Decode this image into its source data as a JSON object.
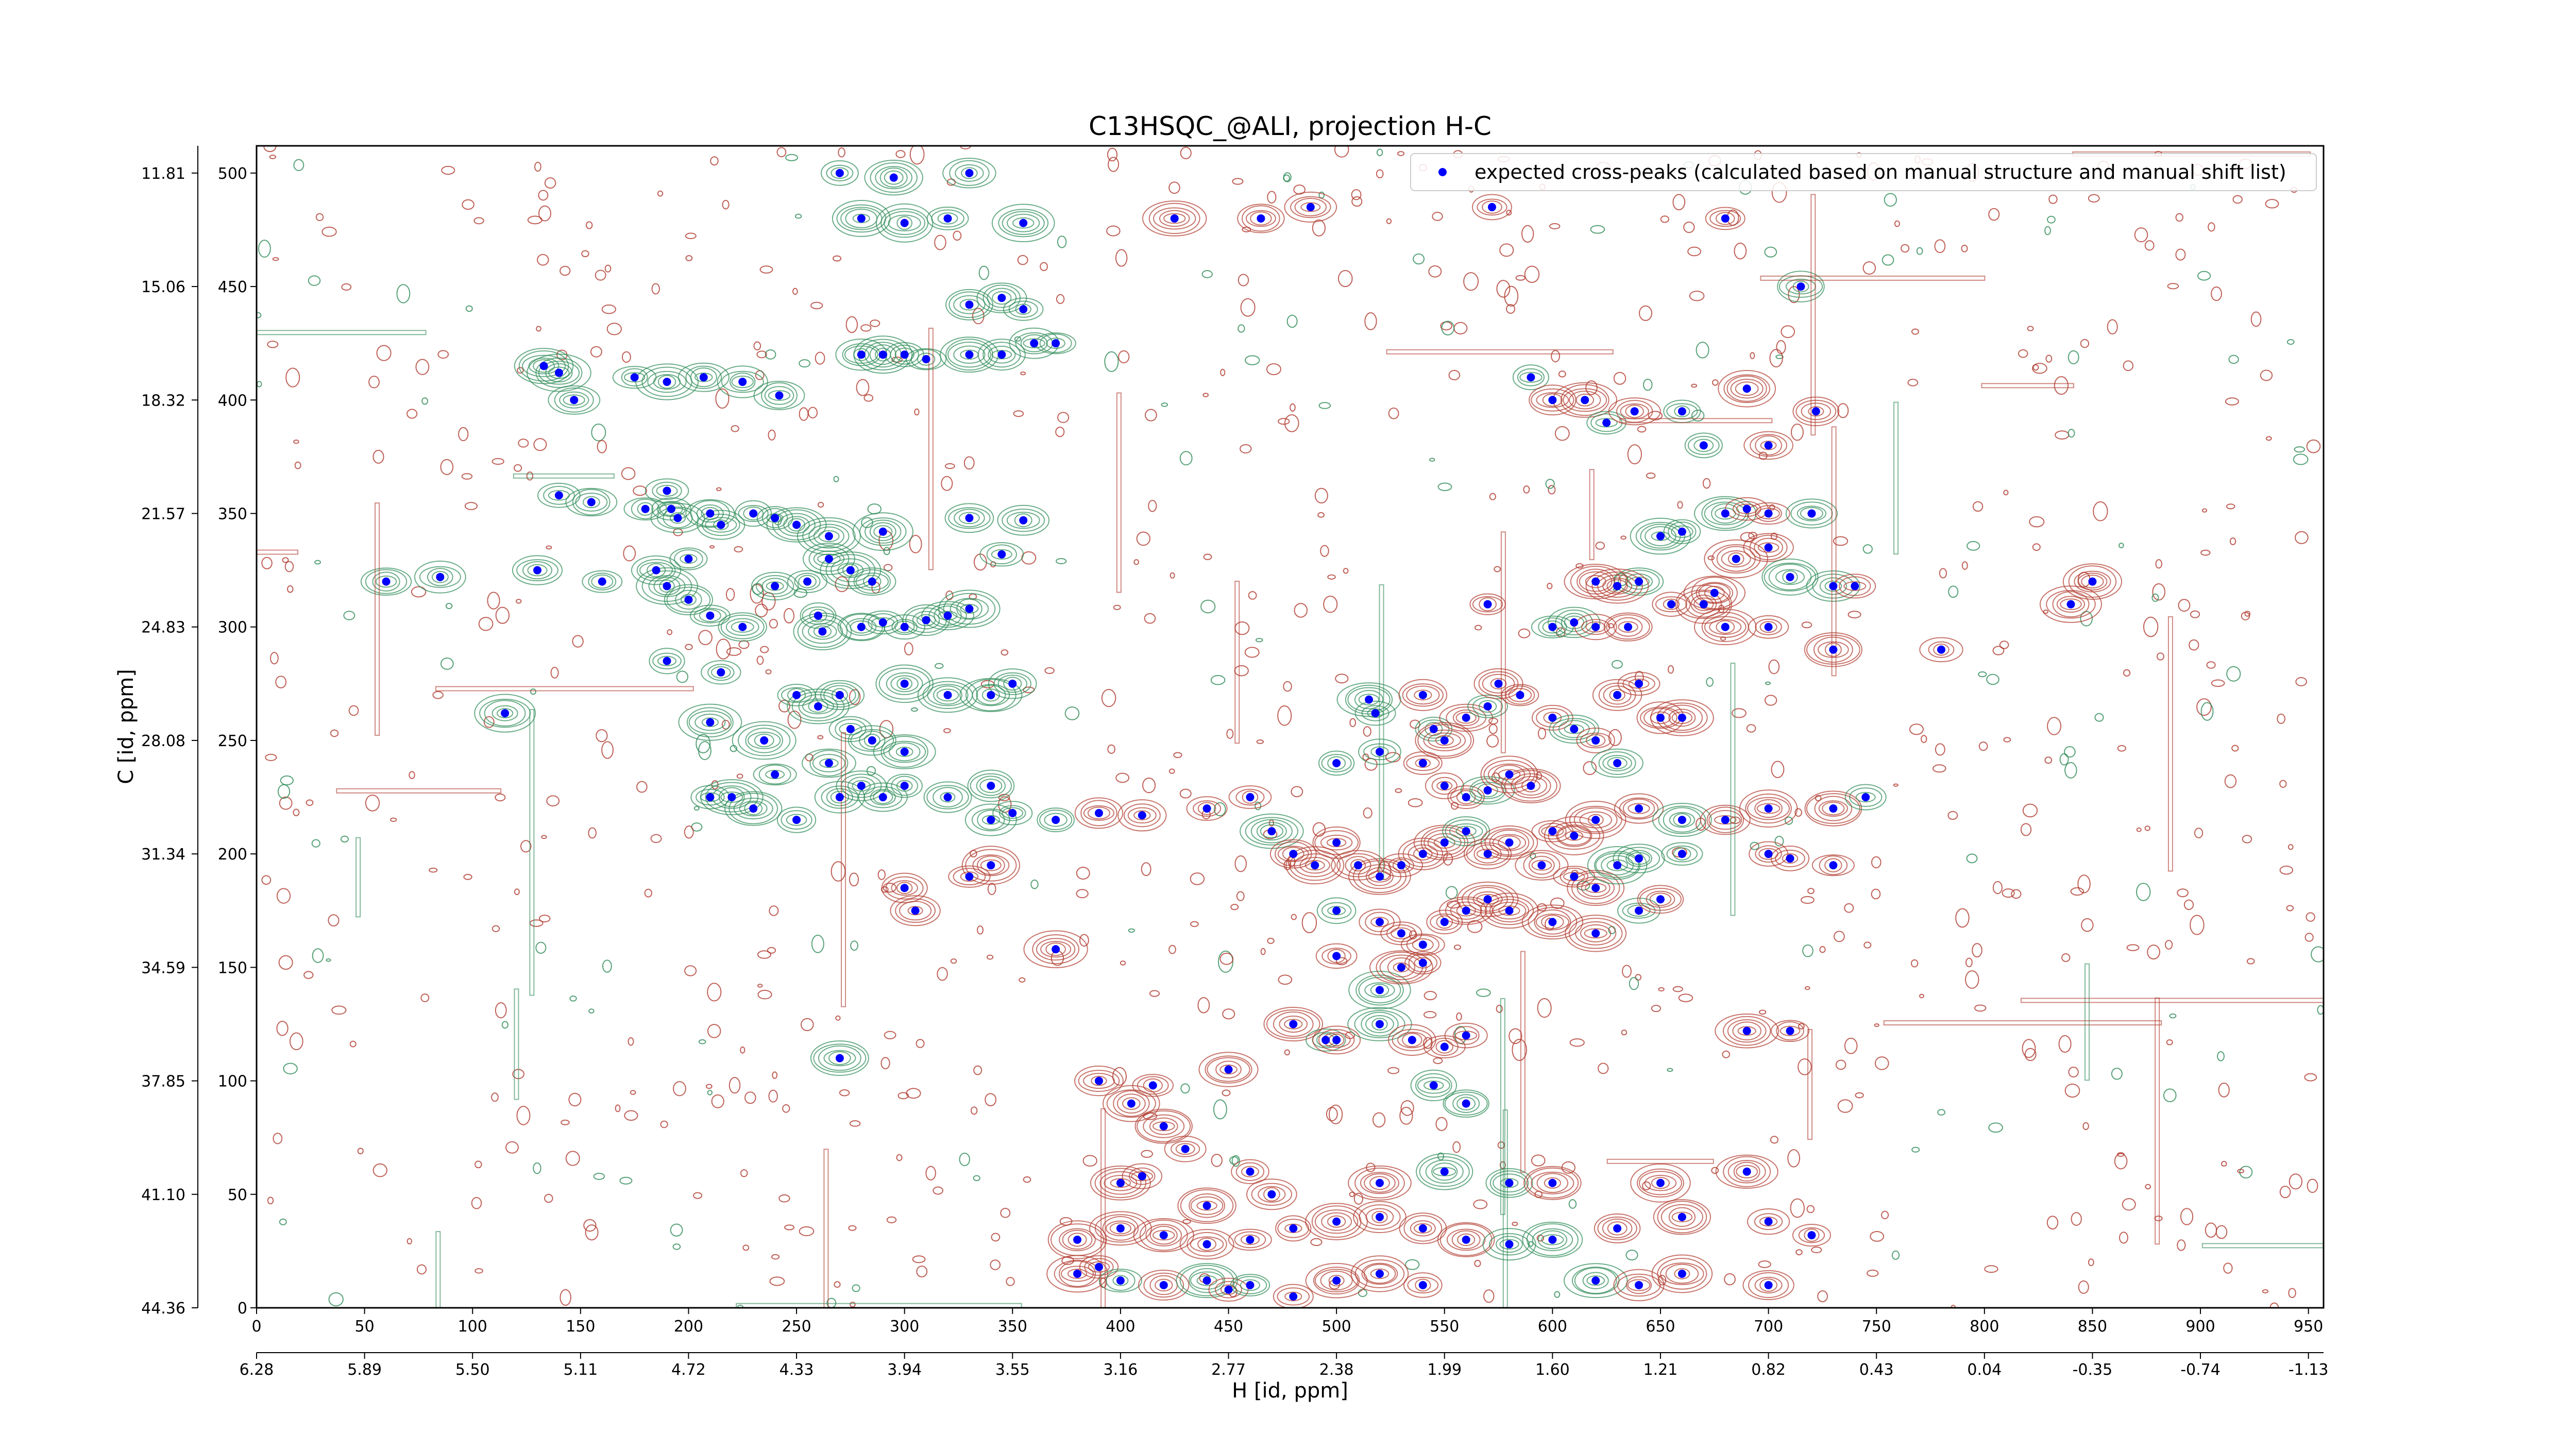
{
  "chart_data": {
    "type": "scatter",
    "title": "C13HSQC_@ALI, projection H-C",
    "xlabel": "H [id, ppm]",
    "ylabel": "C [id, ppm]",
    "xlim": [
      0,
      957
    ],
    "ylim": [
      0,
      512
    ],
    "grid": false,
    "legend": {
      "placement": "top-right",
      "entries": [
        "expected cross-peaks (calculated based on manual structure and manual shift list)"
      ]
    },
    "x_ticks": [
      0,
      50,
      100,
      150,
      200,
      250,
      300,
      350,
      400,
      450,
      500,
      550,
      600,
      650,
      700,
      750,
      800,
      850,
      900,
      950
    ],
    "x_ppm_ticks": [
      "6.28",
      "5.89",
      "5.50",
      "5.11",
      "4.72",
      "4.33",
      "3.94",
      "3.55",
      "3.16",
      "2.77",
      "2.38",
      "1.99",
      "1.60",
      "1.21",
      "0.82",
      "0.43",
      "0.04",
      "-0.35",
      "-0.74",
      "-1.13"
    ],
    "y_ticks": [
      0,
      50,
      100,
      150,
      200,
      250,
      300,
      350,
      400,
      450,
      500
    ],
    "y_ppm_ticks": [
      "44.36",
      "41.10",
      "37.85",
      "34.59",
      "31.34",
      "28.08",
      "24.83",
      "21.57",
      "18.32",
      "15.06",
      "11.81"
    ],
    "colors": {
      "positive_contour": "#2e8b57",
      "negative_contour": "#b03a2e",
      "peak_marker": "#0000ff"
    },
    "series": [
      {
        "name": "expected cross-peaks (calculated based on manual structure and manual shift list)",
        "points": [
          [
            270,
            500
          ],
          [
            295,
            498
          ],
          [
            330,
            500
          ],
          [
            280,
            480
          ],
          [
            300,
            478
          ],
          [
            320,
            480
          ],
          [
            355,
            478
          ],
          [
            425,
            480
          ],
          [
            465,
            480
          ],
          [
            488,
            485
          ],
          [
            572,
            485
          ],
          [
            680,
            480
          ],
          [
            345,
            445
          ],
          [
            330,
            442
          ],
          [
            355,
            440
          ],
          [
            715,
            450
          ],
          [
            133,
            415
          ],
          [
            140,
            412
          ],
          [
            147,
            400
          ],
          [
            175,
            410
          ],
          [
            190,
            408
          ],
          [
            207,
            410
          ],
          [
            225,
            408
          ],
          [
            242,
            402
          ],
          [
            280,
            420
          ],
          [
            290,
            420
          ],
          [
            300,
            420
          ],
          [
            310,
            418
          ],
          [
            330,
            420
          ],
          [
            345,
            420
          ],
          [
            360,
            425
          ],
          [
            370,
            425
          ],
          [
            590,
            410
          ],
          [
            600,
            400
          ],
          [
            615,
            400
          ],
          [
            625,
            390
          ],
          [
            638,
            395
          ],
          [
            660,
            395
          ],
          [
            670,
            380
          ],
          [
            690,
            405
          ],
          [
            722,
            395
          ],
          [
            700,
            380
          ],
          [
            140,
            358
          ],
          [
            155,
            355
          ],
          [
            180,
            352
          ],
          [
            190,
            360
          ],
          [
            192,
            352
          ],
          [
            195,
            348
          ],
          [
            200,
            330
          ],
          [
            210,
            350
          ],
          [
            215,
            345
          ],
          [
            230,
            350
          ],
          [
            240,
            348
          ],
          [
            250,
            345
          ],
          [
            265,
            340
          ],
          [
            290,
            342
          ],
          [
            330,
            348
          ],
          [
            355,
            347
          ],
          [
            160,
            320
          ],
          [
            185,
            325
          ],
          [
            190,
            318
          ],
          [
            200,
            312
          ],
          [
            210,
            305
          ],
          [
            225,
            300
          ],
          [
            240,
            318
          ],
          [
            255,
            320
          ],
          [
            260,
            305
          ],
          [
            262,
            298
          ],
          [
            280,
            300
          ],
          [
            290,
            302
          ],
          [
            300,
            300
          ],
          [
            310,
            303
          ],
          [
            320,
            305
          ],
          [
            330,
            308
          ],
          [
            345,
            332
          ],
          [
            265,
            330
          ],
          [
            275,
            325
          ],
          [
            285,
            320
          ],
          [
            60,
            320
          ],
          [
            85,
            322
          ],
          [
            130,
            325
          ],
          [
            650,
            340
          ],
          [
            660,
            342
          ],
          [
            680,
            350
          ],
          [
            690,
            352
          ],
          [
            700,
            350
          ],
          [
            720,
            350
          ],
          [
            700,
            335
          ],
          [
            710,
            322
          ],
          [
            730,
            318
          ],
          [
            740,
            318
          ],
          [
            685,
            330
          ],
          [
            675,
            315
          ],
          [
            670,
            310
          ],
          [
            640,
            320
          ],
          [
            630,
            318
          ],
          [
            620,
            320
          ],
          [
            570,
            310
          ],
          [
            600,
            300
          ],
          [
            610,
            302
          ],
          [
            620,
            300
          ],
          [
            635,
            300
          ],
          [
            655,
            310
          ],
          [
            680,
            300
          ],
          [
            700,
            300
          ],
          [
            730,
            290
          ],
          [
            780,
            290
          ],
          [
            840,
            310
          ],
          [
            850,
            320
          ],
          [
            190,
            285
          ],
          [
            215,
            280
          ],
          [
            250,
            270
          ],
          [
            260,
            265
          ],
          [
            270,
            270
          ],
          [
            300,
            275
          ],
          [
            320,
            270
          ],
          [
            340,
            270
          ],
          [
            350,
            275
          ],
          [
            115,
            262
          ],
          [
            210,
            258
          ],
          [
            235,
            250
          ],
          [
            240,
            235
          ],
          [
            265,
            240
          ],
          [
            275,
            255
          ],
          [
            285,
            250
          ],
          [
            300,
            245
          ],
          [
            300,
            230
          ],
          [
            340,
            230
          ],
          [
            515,
            268
          ],
          [
            518,
            262
          ],
          [
            540,
            270
          ],
          [
            545,
            255
          ],
          [
            550,
            250
          ],
          [
            560,
            260
          ],
          [
            570,
            265
          ],
          [
            575,
            275
          ],
          [
            585,
            270
          ],
          [
            600,
            260
          ],
          [
            630,
            270
          ],
          [
            640,
            275
          ],
          [
            650,
            260
          ],
          [
            660,
            260
          ],
          [
            610,
            255
          ],
          [
            620,
            250
          ],
          [
            630,
            240
          ],
          [
            500,
            240
          ],
          [
            520,
            245
          ],
          [
            540,
            240
          ],
          [
            550,
            230
          ],
          [
            560,
            225
          ],
          [
            570,
            228
          ],
          [
            580,
            235
          ],
          [
            590,
            230
          ],
          [
            600,
            210
          ],
          [
            610,
            208
          ],
          [
            620,
            215
          ],
          [
            640,
            220
          ],
          [
            660,
            215
          ],
          [
            680,
            215
          ],
          [
            700,
            220
          ],
          [
            730,
            220
          ],
          [
            745,
            225
          ],
          [
            210,
            225
          ],
          [
            220,
            225
          ],
          [
            230,
            220
          ],
          [
            250,
            215
          ],
          [
            270,
            225
          ],
          [
            280,
            230
          ],
          [
            290,
            225
          ],
          [
            320,
            225
          ],
          [
            340,
            215
          ],
          [
            350,
            218
          ],
          [
            370,
            215
          ],
          [
            390,
            218
          ],
          [
            410,
            217
          ],
          [
            440,
            220
          ],
          [
            460,
            225
          ],
          [
            470,
            210
          ],
          [
            480,
            200
          ],
          [
            490,
            195
          ],
          [
            500,
            205
          ],
          [
            510,
            195
          ],
          [
            520,
            190
          ],
          [
            530,
            195
          ],
          [
            540,
            200
          ],
          [
            550,
            205
          ],
          [
            560,
            210
          ],
          [
            570,
            200
          ],
          [
            580,
            205
          ],
          [
            595,
            195
          ],
          [
            610,
            190
          ],
          [
            620,
            185
          ],
          [
            630,
            195
          ],
          [
            640,
            198
          ],
          [
            660,
            200
          ],
          [
            700,
            200
          ],
          [
            710,
            198
          ],
          [
            730,
            195
          ],
          [
            500,
            175
          ],
          [
            520,
            170
          ],
          [
            530,
            165
          ],
          [
            540,
            160
          ],
          [
            550,
            170
          ],
          [
            560,
            175
          ],
          [
            570,
            180
          ],
          [
            580,
            175
          ],
          [
            600,
            170
          ],
          [
            620,
            165
          ],
          [
            640,
            175
          ],
          [
            650,
            180
          ],
          [
            300,
            185
          ],
          [
            330,
            190
          ],
          [
            340,
            195
          ],
          [
            305,
            175
          ],
          [
            370,
            158
          ],
          [
            500,
            155
          ],
          [
            520,
            140
          ],
          [
            530,
            150
          ],
          [
            540,
            152
          ],
          [
            480,
            125
          ],
          [
            495,
            118
          ],
          [
            500,
            118
          ],
          [
            520,
            125
          ],
          [
            535,
            118
          ],
          [
            550,
            115
          ],
          [
            560,
            120
          ],
          [
            690,
            122
          ],
          [
            710,
            122
          ],
          [
            270,
            110
          ],
          [
            545,
            98
          ],
          [
            560,
            90
          ],
          [
            390,
            100
          ],
          [
            415,
            98
          ],
          [
            450,
            105
          ],
          [
            405,
            90
          ],
          [
            420,
            80
          ],
          [
            430,
            70
          ],
          [
            400,
            55
          ],
          [
            410,
            58
          ],
          [
            440,
            45
          ],
          [
            460,
            60
          ],
          [
            470,
            50
          ],
          [
            520,
            55
          ],
          [
            550,
            60
          ],
          [
            580,
            55
          ],
          [
            600,
            55
          ],
          [
            650,
            55
          ],
          [
            690,
            60
          ],
          [
            380,
            30
          ],
          [
            400,
            35
          ],
          [
            420,
            32
          ],
          [
            440,
            28
          ],
          [
            460,
            30
          ],
          [
            480,
            35
          ],
          [
            500,
            38
          ],
          [
            520,
            40
          ],
          [
            540,
            35
          ],
          [
            560,
            30
          ],
          [
            580,
            28
          ],
          [
            600,
            30
          ],
          [
            630,
            35
          ],
          [
            660,
            40
          ],
          [
            700,
            38
          ],
          [
            720,
            32
          ],
          [
            380,
            15
          ],
          [
            390,
            18
          ],
          [
            400,
            12
          ],
          [
            420,
            10
          ],
          [
            440,
            12
          ],
          [
            450,
            8
          ],
          [
            460,
            10
          ],
          [
            480,
            5
          ],
          [
            500,
            12
          ],
          [
            520,
            15
          ],
          [
            540,
            10
          ],
          [
            620,
            12
          ],
          [
            640,
            10
          ],
          [
            660,
            15
          ],
          [
            700,
            10
          ]
        ]
      }
    ]
  }
}
